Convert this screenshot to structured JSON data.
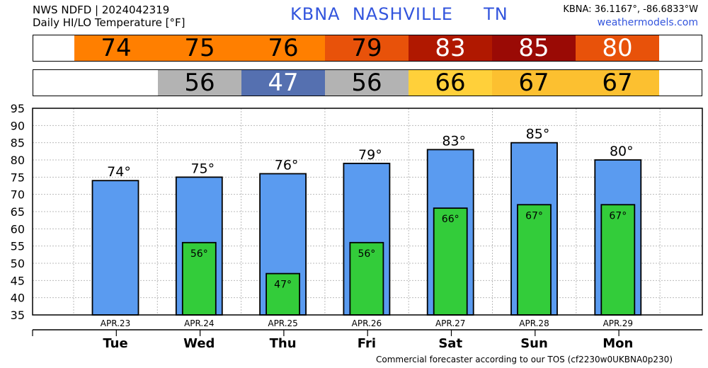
{
  "header": {
    "line1": "NWS NDFD | 2024042319",
    "line2": "Daily HI/LO Temperature [°F]",
    "station_id": "KBNA",
    "city": "NASHVILLE",
    "state": "TN",
    "coords": "KBNA: 36.1167°, -86.6833°W",
    "site": "weathermodels.com"
  },
  "hi_strip": [
    {
      "text": "74",
      "bg": "#ff7f00",
      "fg": "#000000"
    },
    {
      "text": "75",
      "bg": "#ff7f00",
      "fg": "#000000"
    },
    {
      "text": "76",
      "bg": "#ff7f00",
      "fg": "#000000"
    },
    {
      "text": "79",
      "bg": "#e8520a",
      "fg": "#000000"
    },
    {
      "text": "83",
      "bg": "#b01800",
      "fg": "#ffffff"
    },
    {
      "text": "85",
      "bg": "#9a0a05",
      "fg": "#ffffff"
    },
    {
      "text": "80",
      "bg": "#e8520a",
      "fg": "#ffffff"
    }
  ],
  "lo_strip": [
    {
      "text": "",
      "bg": "#ffffff",
      "fg": "#000000"
    },
    {
      "text": "56",
      "bg": "#b3b3b3",
      "fg": "#000000"
    },
    {
      "text": "47",
      "bg": "#5570b0",
      "fg": "#ffffff"
    },
    {
      "text": "56",
      "bg": "#b3b3b3",
      "fg": "#000000"
    },
    {
      "text": "66",
      "bg": "#ffd03a",
      "fg": "#000000"
    },
    {
      "text": "67",
      "bg": "#fcc030",
      "fg": "#000000"
    },
    {
      "text": "67",
      "bg": "#fcc030",
      "fg": "#000000"
    }
  ],
  "chart_data": {
    "type": "bar",
    "categories": [
      "APR.23",
      "APR.24",
      "APR.25",
      "APR.26",
      "APR.27",
      "APR.28",
      "APR.29"
    ],
    "days": [
      "Tue",
      "Wed",
      "Thu",
      "Fri",
      "Sat",
      "Sun",
      "Mon"
    ],
    "series": [
      {
        "values": [
          74,
          75,
          76,
          79,
          83,
          85,
          80
        ],
        "color": "#5a9bf0",
        "labels": [
          "74°",
          "75°",
          "76°",
          "79°",
          "83°",
          "85°",
          "80°"
        ]
      },
      {
        "values": [
          null,
          56,
          47,
          56,
          66,
          67,
          67
        ],
        "color": "#33cc3a",
        "labels": [
          "",
          "56°",
          "47°",
          "56°",
          "66°",
          "67°",
          "67°"
        ]
      }
    ],
    "yticks": [
      "35",
      "40",
      "45",
      "50",
      "55",
      "60",
      "65",
      "70",
      "75",
      "80",
      "85",
      "90",
      "95"
    ],
    "ylim": [
      35,
      95
    ],
    "grid": true,
    "xlabel": "",
    "ylabel": ""
  },
  "footer": "Commercial forecaster according to our TOS (cf2230w0UKBNA0p230)"
}
